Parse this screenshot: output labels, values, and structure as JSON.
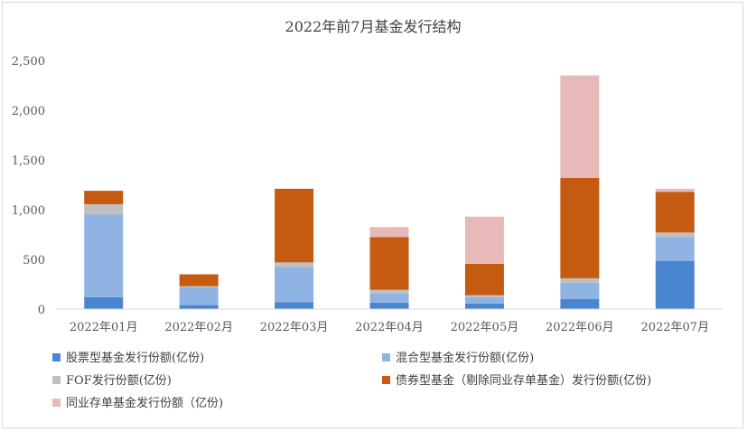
{
  "chart_data": {
    "type": "bar",
    "stacked": true,
    "title": "2022年前7月基金发行结构",
    "categories": [
      "2022年01月",
      "2022年02月",
      "2022年03月",
      "2022年04月",
      "2022年05月",
      "2022年06月",
      "2022年07月"
    ],
    "ylim": [
      0,
      2500
    ],
    "yticks": [
      "0",
      "500",
      "1,000",
      "1,500",
      "2,000",
      "2,500"
    ],
    "grid": false,
    "legend_position": "bottom",
    "series": [
      {
        "name": "股票型基金发行份额(亿份)",
        "color": "#4a86d0",
        "values": [
          120,
          40,
          70,
          65,
          55,
          100,
          485
        ]
      },
      {
        "name": "混合型基金发行份额(亿份)",
        "color": "#8fb4e3",
        "values": [
          830,
          180,
          355,
          90,
          65,
          165,
          240
        ]
      },
      {
        "name": "FOF发行份额(亿份)",
        "color": "#bfbfbf",
        "values": [
          105,
          10,
          45,
          40,
          20,
          45,
          45
        ]
      },
      {
        "name": "债券型基金（剔除同业存单基金）发行份额(亿份)",
        "color": "#c55a11",
        "values": [
          135,
          120,
          740,
          530,
          315,
          1010,
          410
        ]
      },
      {
        "name": "同业存单基金发行份额（亿份)",
        "color": "#e8b9b9",
        "values": [
          0,
          0,
          0,
          100,
          475,
          1030,
          30
        ]
      }
    ]
  }
}
